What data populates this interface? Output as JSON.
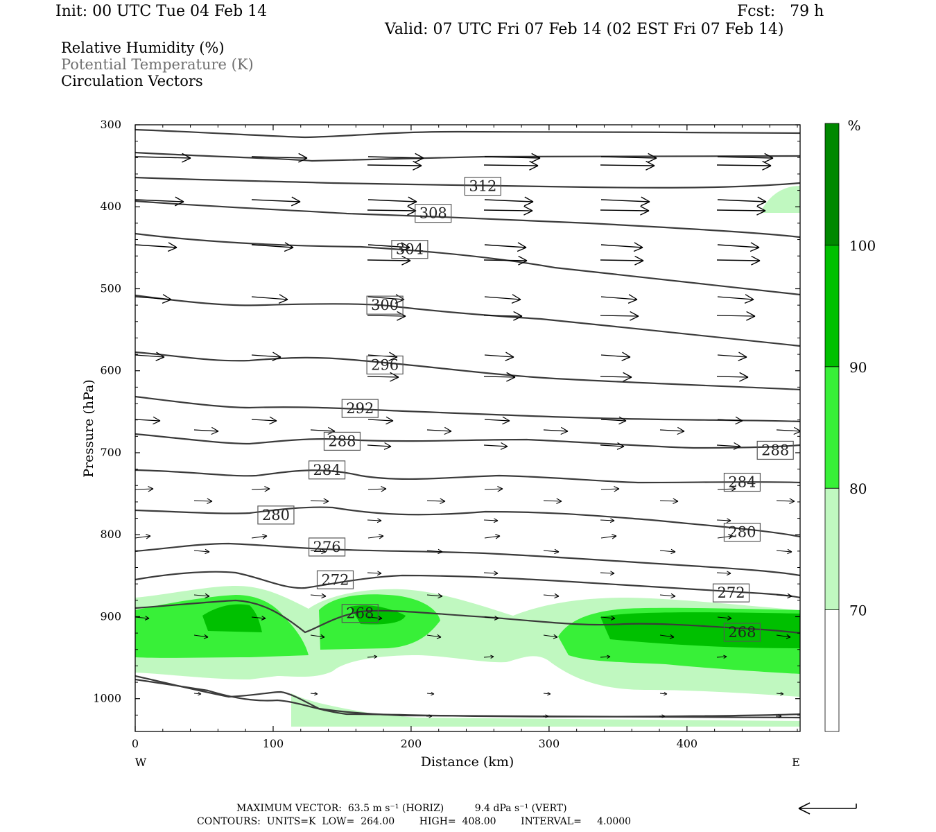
{
  "header": {
    "init": "Init: 00 UTC Tue 04 Feb 14",
    "fcst": "Fcst:   79 h",
    "valid": "Valid: 07 UTC Fri 07 Feb 14 (02 EST Fri 07 Feb 14)"
  },
  "legend": {
    "line1": "Relative Humidity (%)",
    "line2": "Potential Temperature (K)",
    "line3": "Circulation Vectors"
  },
  "footer": {
    "line1": "MAXIMUM VECTOR:  63.5 m s⁻¹ (HORIZ)          9.4 dPa s⁻¹ (VERT)",
    "line2": "CONTOURS:  UNITS=K  LOW=  264.00        HIGH=  408.00        INTERVAL=     4.0000"
  },
  "chart_data": {
    "type": "cross-section",
    "xlabel": "Distance (km)",
    "ylabel": "Pressure (hPa)",
    "xlim": [
      0,
      482
    ],
    "ylim": [
      1040,
      300
    ],
    "x_ticks": [
      0,
      100,
      200,
      300,
      400
    ],
    "y_ticks": [
      300,
      400,
      500,
      600,
      700,
      800,
      900,
      1000
    ],
    "x_end_labels": {
      "left": "W",
      "right": "E"
    },
    "colorbar": {
      "unit": "%",
      "levels": [
        70,
        80,
        90,
        100
      ],
      "colors": [
        "#ffffff",
        "#c0f8c0",
        "#38f038",
        "#00c000",
        "#008800"
      ]
    },
    "theta_labels": [
      {
        "text": "312",
        "x": 252,
        "p": 375
      },
      {
        "text": "308",
        "x": 216,
        "p": 408
      },
      {
        "text": "304",
        "x": 199,
        "p": 452
      },
      {
        "text": "300",
        "x": 181,
        "p": 520
      },
      {
        "text": "296",
        "x": 181,
        "p": 593
      },
      {
        "text": "292",
        "x": 163,
        "p": 646
      },
      {
        "text": "288",
        "x": 150,
        "p": 686
      },
      {
        "text": "288",
        "x": 464,
        "p": 697
      },
      {
        "text": "284",
        "x": 139,
        "p": 721
      },
      {
        "text": "284",
        "x": 440,
        "p": 736
      },
      {
        "text": "280",
        "x": 102,
        "p": 776
      },
      {
        "text": "280",
        "x": 440,
        "p": 797
      },
      {
        "text": "276",
        "x": 139,
        "p": 815
      },
      {
        "text": "272",
        "x": 145,
        "p": 855
      },
      {
        "text": "272",
        "x": 432,
        "p": 871
      },
      {
        "text": "268",
        "x": 163,
        "p": 896
      },
      {
        "text": "268",
        "x": 440,
        "p": 919
      }
    ]
  }
}
